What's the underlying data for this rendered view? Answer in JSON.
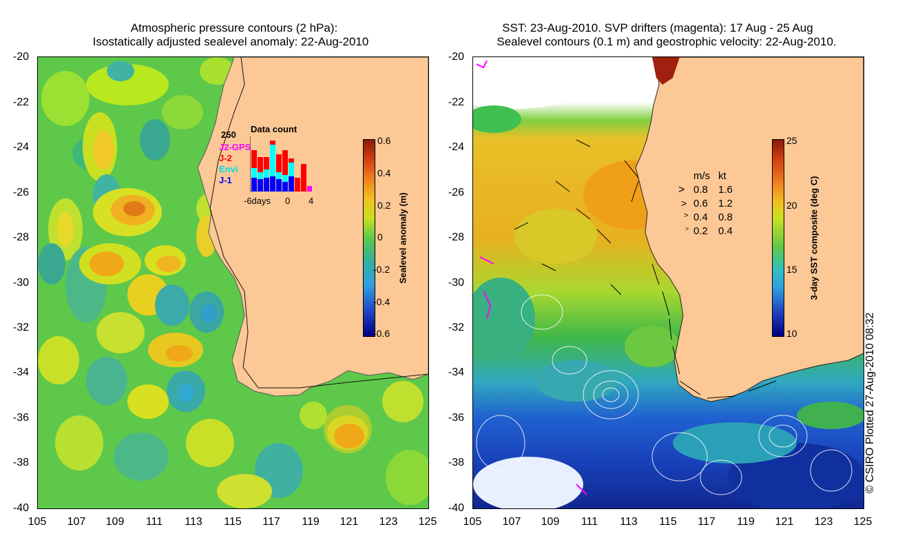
{
  "left_panel": {
    "title_line1": "Atmospheric pressure contours (2 hPa):",
    "title_line2": "Isostatically adjusted sealevel anomaly: 22-Aug-2010",
    "colorbar": {
      "label": "Sealevel anomaly (m)",
      "ticks": [
        "0.6",
        "0.4",
        "0.2",
        "0",
        "-0.2",
        "-0.4",
        "-0.6"
      ]
    },
    "data_count": {
      "title": "Data count",
      "scale_label": "250",
      "legend": [
        {
          "name": "J2-GPS",
          "color": "#ff00ff"
        },
        {
          "name": "J-2",
          "color": "#ff0000"
        },
        {
          "name": "Envi",
          "color": "#00ffff"
        },
        {
          "name": "J-1",
          "color": "#0000ff"
        }
      ],
      "x_labels": [
        "-6days",
        "0",
        "4"
      ]
    }
  },
  "right_panel": {
    "title_line1": "SST: 23-Aug-2010. SVP drifters (magenta): 17 Aug - 25 Aug",
    "title_line2": "Sealevel contours (0.1 m) and geostrophic velocity: 22-Aug-2010.",
    "colorbar": {
      "label": "3-day SST composite (deg C)",
      "ticks": [
        "25",
        "20",
        "15",
        "10"
      ]
    },
    "velocity_legend": {
      "header_ms": "m/s",
      "header_kt": "kt",
      "rows": [
        {
          "ms": "0.8",
          "kt": "1.6"
        },
        {
          "ms": "0.6",
          "kt": "1.2"
        },
        {
          "ms": "0.4",
          "kt": "0.8"
        },
        {
          "ms": "0.2",
          "kt": "0.4"
        }
      ]
    }
  },
  "axes": {
    "lat_ticks": [
      "-20",
      "-22",
      "-24",
      "-26",
      "-28",
      "-30",
      "-32",
      "-34",
      "-36",
      "-38",
      "-40"
    ],
    "lon_ticks": [
      "105",
      "107",
      "109",
      "111",
      "113",
      "115",
      "117",
      "119",
      "121",
      "123",
      "125"
    ]
  },
  "credit": "© CSIRO Plotted 27-Aug-2010 08:32",
  "colors": {
    "land": "#fcc896",
    "ocean_green": "#4fc23a",
    "left_bg": "#5ec84a"
  }
}
